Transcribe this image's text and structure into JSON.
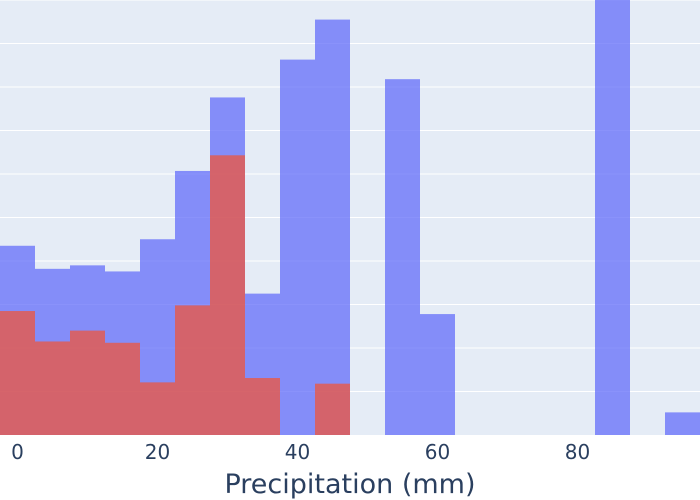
{
  "colors": {
    "plot_background": "#e5ecf6",
    "grid": "#ffffff",
    "text": "#2a3f5f"
  },
  "chart_data": {
    "type": "bar",
    "barmode": "overlay",
    "xlabel": "Precipitation (mm)",
    "xlim": [
      -2.5,
      97.5
    ],
    "bin_width": 5,
    "x": [
      0,
      5,
      10,
      15,
      20,
      25,
      30,
      35,
      40,
      45,
      50,
      55,
      60,
      65,
      70,
      75,
      80,
      85,
      90,
      95
    ],
    "xticks": [
      0,
      20,
      40,
      60,
      80
    ],
    "xtick_labels": [
      "0",
      "20",
      "40",
      "60",
      "80"
    ],
    "ylim": [
      0,
      10
    ],
    "ygrid": [
      1,
      2,
      3,
      4,
      5,
      6,
      7,
      8,
      9,
      10
    ],
    "grid": true,
    "series": [
      {
        "color": "#636efa",
        "opacity": 0.75,
        "values": [
          4.35,
          3.82,
          3.9,
          3.76,
          4.5,
          6.07,
          7.76,
          3.25,
          8.63,
          9.55,
          0,
          8.18,
          2.78,
          0,
          0,
          0,
          0,
          10.5,
          0,
          0.52
        ]
      },
      {
        "color": "#ef553b",
        "opacity": 0.75,
        "values": [
          2.85,
          2.15,
          2.4,
          2.12,
          1.21,
          2.98,
          6.43,
          1.31,
          0,
          1.18,
          0,
          0,
          0,
          0,
          0,
          0,
          0,
          0,
          0,
          0
        ]
      }
    ]
  }
}
